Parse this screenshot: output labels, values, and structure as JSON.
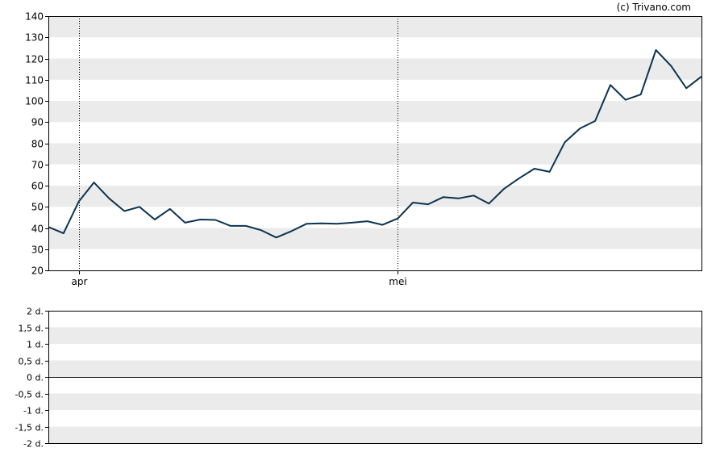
{
  "credit": "(c) Trivano.com",
  "colors": {
    "line": "#0d3450",
    "band": "#ebebeb",
    "axis": "#000000",
    "background": "#ffffff"
  },
  "chart_data": [
    {
      "type": "line",
      "title": "",
      "xlabel": "",
      "ylabel": "",
      "ylim": [
        20,
        140
      ],
      "yticks": [
        "140",
        "130",
        "120",
        "110",
        "100",
        "90",
        "80",
        "70",
        "60",
        "50",
        "40",
        "30",
        "20"
      ],
      "xtick_labels": [
        "apr",
        "mei"
      ],
      "xtick_index": [
        2,
        23
      ],
      "grid": "alternating horizontal bands; dotted vertical lines at month starts",
      "series": [
        {
          "values": [
            40.5,
            37.5,
            52.5,
            61.5,
            54,
            48,
            50,
            44,
            49,
            42.5,
            44,
            43.8,
            41,
            41,
            39,
            35.5,
            38.5,
            42,
            42.2,
            42,
            42.5,
            43.2,
            41.5,
            44.5,
            52,
            51.2,
            54.6,
            54,
            55.3,
            51.5,
            58.5,
            63.5,
            68,
            66.5,
            80.5,
            87,
            90.5,
            107.5,
            100.5,
            103,
            124,
            116.5,
            106,
            111.5
          ]
        }
      ]
    },
    {
      "type": "line",
      "title": "",
      "ylim": [
        -2,
        2
      ],
      "yticks": [
        "2 d.",
        "1,5 d.",
        "1 d.",
        "0,5 d.",
        "0 d.",
        "-0,5 d.",
        "-1 d.",
        "-1,5 d.",
        "-2 d."
      ],
      "baseline": 0,
      "series": []
    }
  ]
}
